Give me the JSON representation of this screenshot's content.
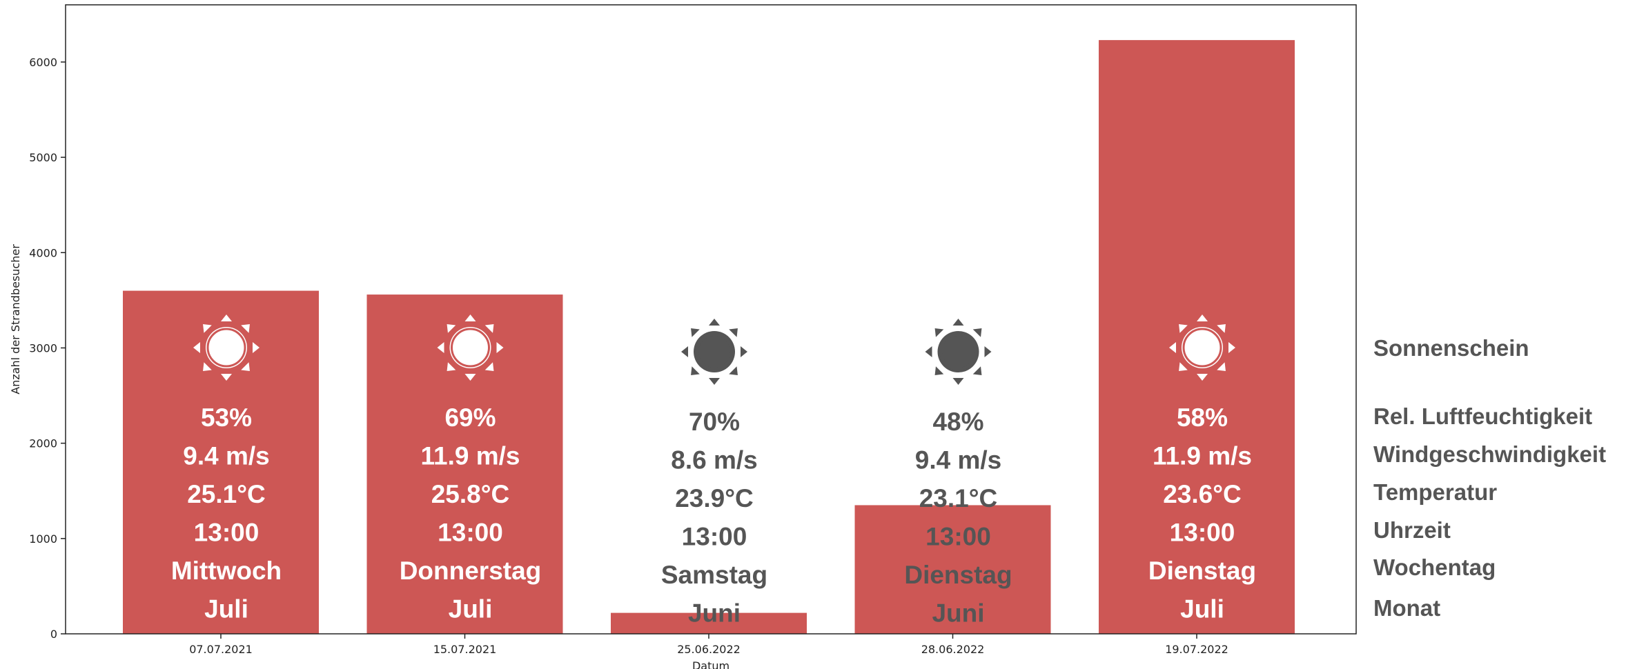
{
  "chart_data": {
    "type": "bar",
    "title": "",
    "xlabel": "Datum",
    "ylabel": "Anzahl der Strandbesucher",
    "ylim": [
      0,
      6600
    ],
    "yticks": [
      0,
      1000,
      2000,
      3000,
      4000,
      5000,
      6000
    ],
    "grid": false,
    "bar_color": "#cd5755",
    "annotation_light_color": "#ffffff",
    "annotation_dark_color": "#555555",
    "categories": [
      "07.07.2021",
      "15.07.2021",
      "25.06.2022",
      "28.06.2022",
      "19.07.2022"
    ],
    "values": [
      3600,
      3560,
      220,
      1350,
      6230
    ],
    "annotations": [
      {
        "sunshine": true,
        "icon": "sun-icon",
        "humidity": "53%",
        "wind": "9.4 m/s",
        "temperature": "25.1°C",
        "time": "13:00",
        "weekday": "Mittwoch",
        "month": "Juli"
      },
      {
        "sunshine": true,
        "icon": "sun-icon",
        "humidity": "69%",
        "wind": "11.9 m/s",
        "temperature": "25.8°C",
        "time": "13:00",
        "weekday": "Donnerstag",
        "month": "Juli"
      },
      {
        "sunshine": false,
        "icon": "sun-outline-icon",
        "humidity": "70%",
        "wind": "8.6 m/s",
        "temperature": "23.9°C",
        "time": "13:00",
        "weekday": "Samstag",
        "month": "Juni"
      },
      {
        "sunshine": false,
        "icon": "sun-outline-icon",
        "humidity": "48%",
        "wind": "9.4 m/s",
        "temperature": "23.1°C",
        "time": "13:00",
        "weekday": "Dienstag",
        "month": "Juni"
      },
      {
        "sunshine": true,
        "icon": "sun-icon",
        "humidity": "58%",
        "wind": "11.9 m/s",
        "temperature": "23.6°C",
        "time": "13:00",
        "weekday": "Dienstag",
        "month": "Juli"
      }
    ],
    "row_legend": [
      "Sonnenschein",
      "Rel. Luftfeuchtigkeit",
      "Windgeschwindigkeit",
      "Temperatur",
      "Uhrzeit",
      "Wochentag",
      "Monat"
    ]
  }
}
